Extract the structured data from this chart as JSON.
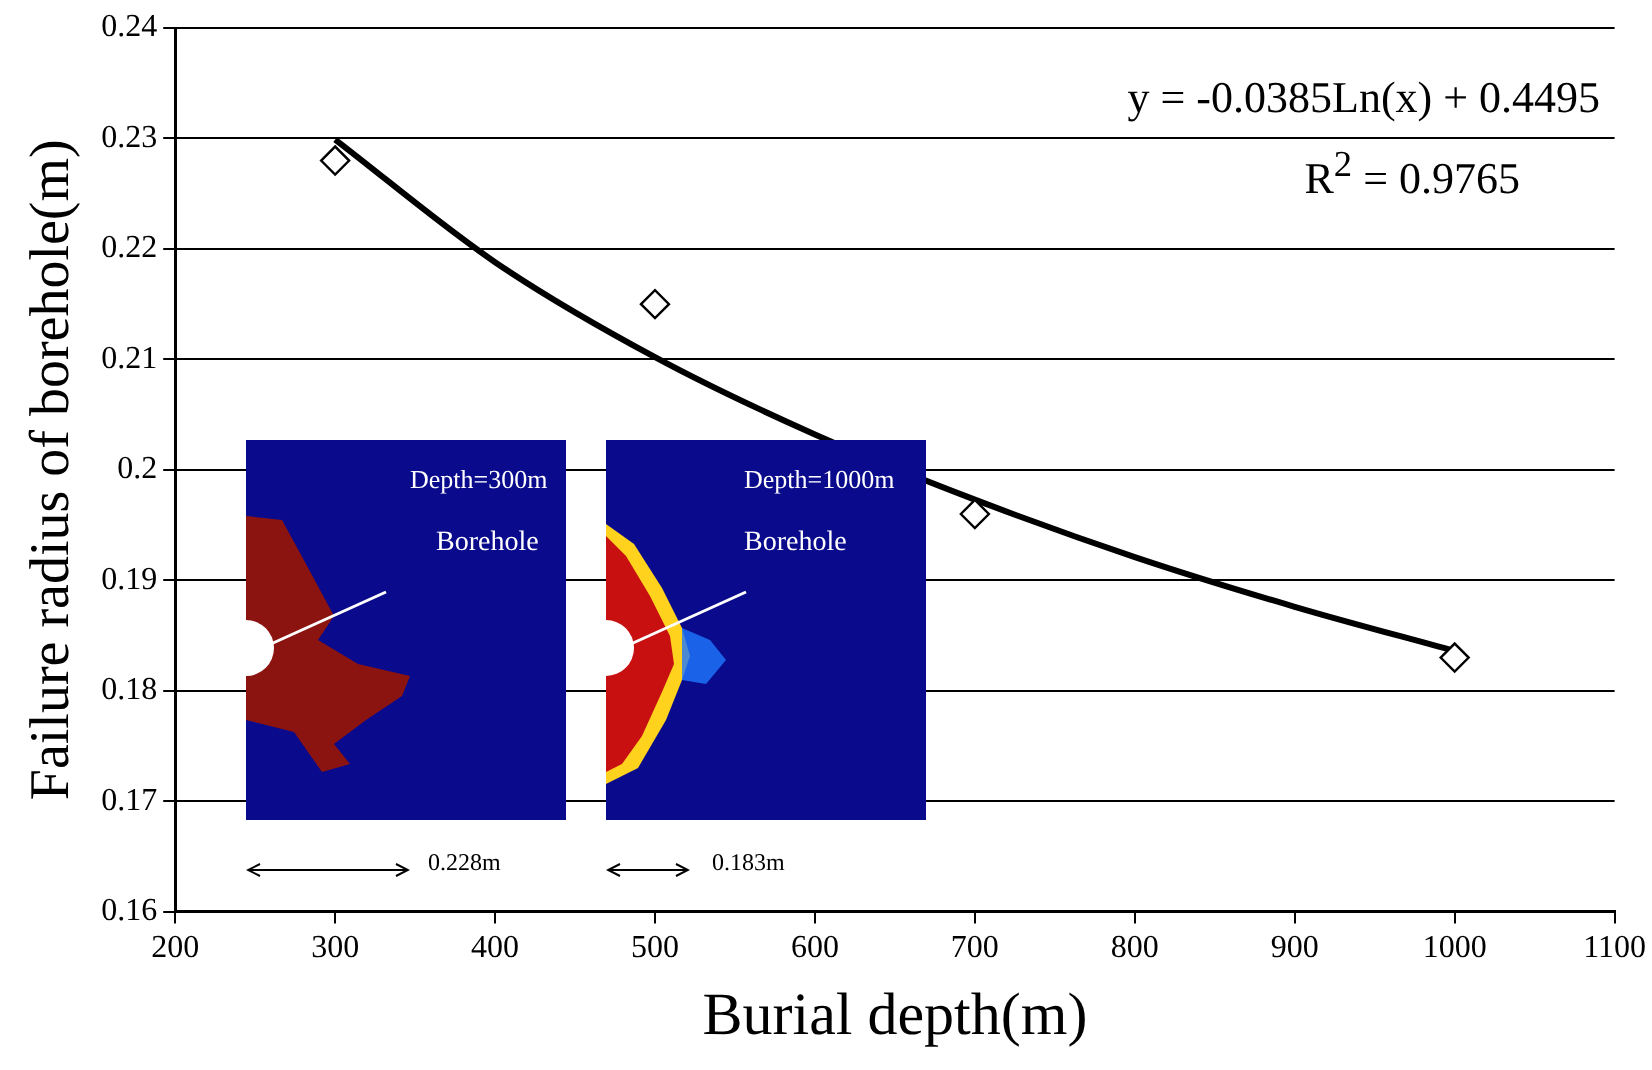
{
  "chart_data": {
    "type": "scatter",
    "xlabel": "Burial depth(m)",
    "ylabel": "Failure radius of borehole(m)",
    "xlim": [
      200,
      1100
    ],
    "xticks": [
      200,
      300,
      400,
      500,
      600,
      700,
      800,
      900,
      1000,
      1100
    ],
    "ylim": [
      0.16,
      0.24
    ],
    "yticks": [
      0.16,
      0.17,
      0.18,
      0.19,
      0.2,
      0.21,
      0.22,
      0.23,
      0.24
    ],
    "grid": "y",
    "legend": false,
    "series": [
      {
        "type": "scatter",
        "color": "#000000",
        "marker": "diamond",
        "x": [
          300,
          500,
          700,
          1000
        ],
        "values": [
          0.228,
          0.215,
          0.196,
          0.183
        ]
      },
      {
        "type": "line",
        "color": "#000000",
        "marker": "none",
        "line_style": "solid",
        "x": [
          300,
          400,
          500,
          600,
          700,
          800,
          900,
          1000
        ],
        "values": [
          0.2299,
          0.2188,
          0.2102,
          0.2032,
          0.1973,
          0.1921,
          0.1876,
          0.1836
        ]
      }
    ],
    "annotations": [
      "y = -0.0385Ln(x) + 0.4495",
      "R$^{2}$ = 0.9765",
      "Depth=300m",
      "Borehole",
      "Depth=1000m",
      "Borehole",
      "0.228m",
      "0.183m"
    ]
  }
}
